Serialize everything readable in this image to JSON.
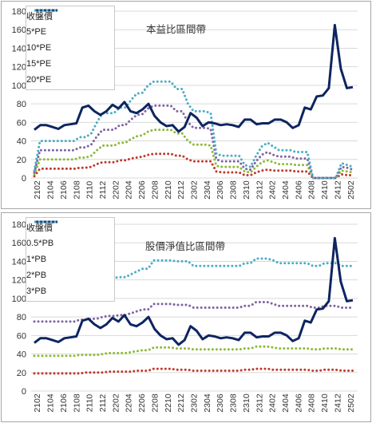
{
  "chart_data": [
    {
      "type": "line",
      "title": "本益比區間帶",
      "ylim": [
        0,
        180
      ],
      "yticks": [
        0,
        20,
        40,
        60,
        80,
        100,
        120,
        140,
        160,
        180
      ],
      "x_tick_labels": [
        "2102",
        "2104",
        "2106",
        "2108",
        "2110",
        "2112",
        "2202",
        "2204",
        "2206",
        "2208",
        "2210",
        "2212",
        "2302",
        "2304",
        "2306",
        "2308",
        "2310",
        "2312",
        "2402",
        "2404",
        "2406",
        "2408",
        "2410",
        "2412",
        "2502"
      ],
      "x_first": "2101",
      "x_last": "2503",
      "grid": "horizontal",
      "legend_position": "top-left",
      "series": [
        {
          "name": "收盤價",
          "color": "#0d2560",
          "style": "solid",
          "values": [
            52,
            57,
            57,
            55,
            53,
            57,
            58,
            59,
            76,
            78,
            72,
            68,
            72,
            79,
            75,
            82,
            72,
            70,
            74,
            80,
            67,
            60,
            56,
            57,
            50,
            55,
            70,
            65,
            56,
            60,
            59,
            57,
            58,
            57,
            55,
            63,
            63,
            58,
            59,
            59,
            63,
            63,
            60,
            54,
            57,
            76,
            74,
            88,
            89,
            97,
            165,
            118,
            97,
            98
          ]
        },
        {
          "name": "5*PE",
          "color": "#c0392b",
          "style": "dotted",
          "values": [
            2,
            10,
            10,
            10,
            10,
            10,
            10,
            10,
            11,
            11,
            12,
            15,
            17,
            17,
            17,
            19,
            19,
            21,
            22,
            23,
            25,
            26,
            26,
            26,
            26,
            24,
            24,
            20,
            18,
            18,
            18,
            18,
            7,
            6,
            6,
            6,
            6,
            3,
            3,
            6,
            8,
            9,
            8,
            8,
            8,
            8,
            7,
            7,
            7,
            0,
            0,
            0,
            0,
            0,
            4,
            3,
            3
          ]
        },
        {
          "name": "10*PE",
          "color": "#8cba3a",
          "style": "dotted",
          "values": [
            4,
            20,
            20,
            20,
            20,
            20,
            20,
            20,
            22,
            22,
            24,
            30,
            35,
            35,
            35,
            38,
            38,
            42,
            45,
            46,
            50,
            52,
            52,
            52,
            52,
            48,
            48,
            40,
            36,
            36,
            36,
            35,
            13,
            12,
            12,
            12,
            12,
            7,
            6,
            12,
            17,
            19,
            17,
            15,
            15,
            15,
            14,
            14,
            14,
            0,
            0,
            0,
            0,
            0,
            8,
            7,
            6
          ]
        },
        {
          "name": "15*PE",
          "color": "#8064a2",
          "style": "dotted",
          "values": [
            6,
            30,
            30,
            30,
            30,
            30,
            30,
            30,
            33,
            33,
            36,
            45,
            52,
            52,
            52,
            57,
            57,
            63,
            68,
            69,
            75,
            78,
            78,
            78,
            78,
            72,
            72,
            60,
            54,
            54,
            54,
            53,
            20,
            18,
            18,
            18,
            18,
            10,
            9,
            18,
            25,
            28,
            25,
            23,
            23,
            23,
            21,
            21,
            21,
            0,
            0,
            0,
            0,
            0,
            12,
            11,
            9
          ]
        },
        {
          "name": "20*PE",
          "color": "#4bacc6",
          "style": "dotted",
          "values": [
            8,
            40,
            40,
            40,
            40,
            40,
            40,
            40,
            44,
            44,
            48,
            60,
            70,
            70,
            70,
            76,
            76,
            84,
            91,
            92,
            100,
            104,
            104,
            104,
            104,
            96,
            96,
            80,
            72,
            72,
            72,
            70,
            26,
            24,
            24,
            24,
            24,
            14,
            12,
            24,
            34,
            38,
            34,
            30,
            30,
            30,
            28,
            28,
            28,
            0,
            0,
            0,
            0,
            0,
            16,
            14,
            12
          ]
        }
      ]
    },
    {
      "type": "line",
      "title": "股價淨值比區間帶",
      "ylim": [
        0,
        180
      ],
      "yticks": [
        0,
        20,
        40,
        60,
        80,
        100,
        120,
        140,
        160,
        180
      ],
      "x_tick_labels": [
        "2102",
        "2104",
        "2106",
        "2108",
        "2110",
        "2112",
        "2202",
        "2204",
        "2206",
        "2208",
        "2210",
        "2212",
        "2302",
        "2304",
        "2306",
        "2308",
        "2310",
        "2312",
        "2402",
        "2404",
        "2406",
        "2408",
        "2410",
        "2412",
        "2502"
      ],
      "x_first": "2101",
      "x_last": "2503",
      "grid": "horizontal",
      "legend_position": "top-left",
      "series": [
        {
          "name": "收盤價",
          "color": "#0d2560",
          "style": "solid",
          "values": [
            52,
            57,
            57,
            55,
            53,
            57,
            58,
            59,
            76,
            78,
            72,
            68,
            72,
            79,
            75,
            82,
            72,
            70,
            74,
            80,
            67,
            60,
            56,
            57,
            50,
            55,
            70,
            65,
            56,
            60,
            59,
            57,
            58,
            57,
            55,
            63,
            63,
            58,
            59,
            59,
            63,
            63,
            60,
            54,
            57,
            76,
            74,
            88,
            89,
            97,
            165,
            118,
            97,
            98
          ]
        },
        {
          "name": "0.5*PB",
          "color": "#c0392b",
          "style": "dotted",
          "values": [
            19,
            19,
            19,
            19,
            19,
            19,
            19,
            19,
            19,
            20,
            20,
            20,
            20,
            21,
            21,
            21,
            21,
            21,
            22,
            22,
            22,
            24,
            24,
            24,
            24,
            23,
            23,
            23,
            22,
            22,
            22,
            22,
            22,
            22,
            22,
            22,
            22,
            23,
            23,
            24,
            24,
            24,
            23,
            23,
            23,
            23,
            23,
            23,
            23,
            22,
            22,
            23,
            23,
            23,
            22,
            22,
            22
          ]
        },
        {
          "name": "1*PB",
          "color": "#8cba3a",
          "style": "dotted",
          "values": [
            38,
            38,
            38,
            38,
            38,
            38,
            38,
            38,
            39,
            39,
            39,
            39,
            40,
            41,
            41,
            41,
            41,
            42,
            43,
            44,
            44,
            47,
            47,
            47,
            47,
            46,
            46,
            46,
            45,
            45,
            45,
            45,
            45,
            45,
            45,
            45,
            45,
            46,
            46,
            48,
            48,
            48,
            47,
            46,
            46,
            46,
            46,
            46,
            46,
            45,
            45,
            46,
            46,
            46,
            45,
            45,
            45
          ]
        },
        {
          "name": "2*PB",
          "color": "#8064a2",
          "style": "dotted",
          "values": [
            75,
            75,
            75,
            75,
            75,
            75,
            75,
            75,
            77,
            77,
            78,
            78,
            80,
            81,
            81,
            82,
            82,
            84,
            86,
            88,
            88,
            94,
            94,
            94,
            94,
            93,
            93,
            93,
            90,
            90,
            90,
            90,
            90,
            90,
            90,
            90,
            90,
            92,
            92,
            96,
            96,
            96,
            94,
            92,
            92,
            92,
            92,
            92,
            92,
            90,
            90,
            92,
            92,
            92,
            90,
            90,
            90
          ]
        },
        {
          "name": "3*PB",
          "color": "#4bacc6",
          "style": "dotted",
          "values": [
            113,
            113,
            113,
            113,
            113,
            113,
            113,
            113,
            115,
            115,
            117,
            117,
            120,
            122,
            122,
            123,
            123,
            126,
            129,
            132,
            132,
            141,
            141,
            141,
            141,
            140,
            140,
            140,
            135,
            135,
            135,
            135,
            135,
            135,
            135,
            135,
            135,
            138,
            138,
            143,
            143,
            143,
            141,
            138,
            138,
            138,
            138,
            138,
            138,
            135,
            135,
            138,
            138,
            138,
            135,
            135,
            135
          ]
        }
      ]
    }
  ]
}
